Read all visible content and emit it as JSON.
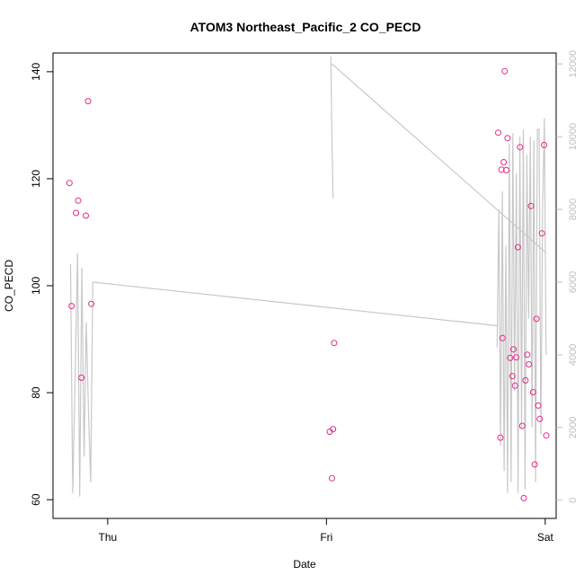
{
  "chart_data": {
    "type": "scatter",
    "title": "ATOM3 Northeast_Pacific_2 CO_PECD",
    "xlabel": "Date",
    "ylabel": "CO_PECD",
    "x_ticks": [
      {
        "day": 1.0,
        "label": "Thu"
      },
      {
        "day": 2.0,
        "label": "Fri"
      },
      {
        "day": 3.0,
        "label": "Sat"
      }
    ],
    "xlim": [
      0.75,
      3.05
    ],
    "ylim": [
      56.5,
      143.5
    ],
    "y_ticks": [
      60,
      80,
      100,
      120,
      140
    ],
    "y2_ticks": [
      0,
      2000,
      4000,
      6000,
      8000,
      10000,
      12000
    ],
    "y2lim": [
      -500,
      12300
    ],
    "grid": false,
    "colors": {
      "points": "#e7298a",
      "altitude_line": "#c8c8c8",
      "right_axis": "#bdbdbd"
    },
    "series": [
      {
        "marker": "open-circle",
        "axis": "left",
        "x": [
          0.825,
          0.835,
          0.855,
          0.865,
          0.88,
          0.9,
          0.91,
          0.925,
          2.015,
          2.025,
          2.03,
          2.035,
          2.785,
          2.795,
          2.8,
          2.805,
          2.81,
          2.815,
          2.822,
          2.828,
          2.84,
          2.85,
          2.855,
          2.862,
          2.868,
          2.875,
          2.885,
          2.895,
          2.902,
          2.91,
          2.918,
          2.925,
          2.935,
          2.945,
          2.952,
          2.96,
          2.968,
          2.975,
          2.985,
          2.995,
          3.005
        ],
        "y": [
          119.2,
          96.2,
          113.6,
          115.9,
          82.8,
          113.1,
          134.5,
          96.6,
          72.7,
          64.0,
          73.2,
          89.3,
          128.6,
          71.6,
          121.7,
          90.2,
          123.1,
          140.1,
          121.6,
          127.6,
          86.5,
          83.1,
          88.1,
          81.3,
          86.6,
          107.2,
          125.9,
          73.8,
          60.3,
          82.3,
          87.1,
          85.3,
          114.9,
          80.1,
          66.6,
          93.8,
          77.6,
          75.1,
          109.8,
          126.3,
          72.0
        ]
      },
      {
        "marker": "line",
        "axis": "right",
        "segments": [
          {
            "x": [
              0.83,
              0.84,
              0.85,
              0.862,
              0.872,
              0.882,
              0.892,
              0.902,
              0.912,
              0.922,
              0.932
            ],
            "y": [
              6500,
              200,
              3000,
              6800,
              100,
              6400,
              1200,
              4900,
              2500,
              500,
              6000
            ]
          },
          {
            "x": [
              0.932,
              2.78
            ],
            "y": [
              6000,
              4800
            ]
          },
          {
            "x": [
              2.78,
              2.788,
              2.796,
              2.804,
              2.812,
              2.82,
              2.828,
              2.836,
              2.844,
              2.852,
              2.86,
              2.868,
              2.876,
              2.884,
              2.892,
              2.9,
              2.908,
              2.916,
              2.924,
              2.932,
              2.94,
              2.948,
              2.956,
              2.964,
              2.972,
              2.98,
              2.988,
              2.996,
              3.004
            ],
            "y": [
              4200,
              8000,
              1500,
              8500,
              800,
              7000,
              200,
              9800,
              500,
              10100,
              3000,
              9000,
              200,
              10000,
              2000,
              10200,
              300,
              9500,
              5000,
              10000,
              2000,
              9900,
              500,
              10200,
              10200,
              1800,
              8000,
              10500,
              4000
            ]
          },
          {
            "x": [
              2.02,
              2.025,
              2.03
            ],
            "y": [
              12200,
              10000,
              8300
            ]
          },
          {
            "x": [
              2.025,
              3.005
            ],
            "y": [
              12000,
              6800
            ]
          }
        ]
      }
    ]
  }
}
